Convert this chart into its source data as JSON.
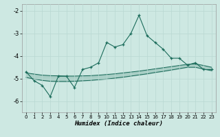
{
  "x": [
    0,
    1,
    2,
    3,
    4,
    5,
    6,
    7,
    8,
    9,
    10,
    11,
    12,
    13,
    14,
    15,
    16,
    17,
    18,
    19,
    20,
    21,
    22,
    23
  ],
  "y_main": [
    -4.7,
    -5.1,
    -5.3,
    -5.8,
    -4.9,
    -4.9,
    -5.4,
    -4.6,
    -4.5,
    -4.3,
    -3.4,
    -3.6,
    -3.5,
    -3.0,
    -2.2,
    -3.1,
    -3.4,
    -3.7,
    -4.1,
    -4.1,
    -4.4,
    -4.3,
    -4.6,
    -4.6
  ],
  "y_upper": [
    -4.75,
    -4.8,
    -4.85,
    -4.87,
    -4.88,
    -4.89,
    -4.89,
    -4.88,
    -4.87,
    -4.85,
    -4.82,
    -4.79,
    -4.75,
    -4.71,
    -4.67,
    -4.62,
    -4.57,
    -4.52,
    -4.47,
    -4.42,
    -4.37,
    -4.35,
    -4.42,
    -4.5
  ],
  "y_lower": [
    -4.95,
    -5.02,
    -5.08,
    -5.12,
    -5.13,
    -5.13,
    -5.12,
    -5.1,
    -5.08,
    -5.05,
    -5.02,
    -4.98,
    -4.94,
    -4.89,
    -4.84,
    -4.79,
    -4.73,
    -4.68,
    -4.62,
    -4.56,
    -4.5,
    -4.5,
    -4.58,
    -4.65
  ],
  "line_color": "#1a6b5a",
  "bg_color": "#cde8e2",
  "grid_color": "#b8d8d2",
  "xlabel": "Humidex (Indice chaleur)",
  "ylim": [
    -6.5,
    -1.7
  ],
  "xlim": [
    -0.5,
    23.5
  ],
  "yticks": [
    -6,
    -5,
    -4,
    -3,
    -2
  ],
  "xticks": [
    0,
    1,
    2,
    3,
    4,
    5,
    6,
    7,
    8,
    9,
    10,
    11,
    12,
    13,
    14,
    15,
    16,
    17,
    18,
    19,
    20,
    21,
    22,
    23
  ]
}
